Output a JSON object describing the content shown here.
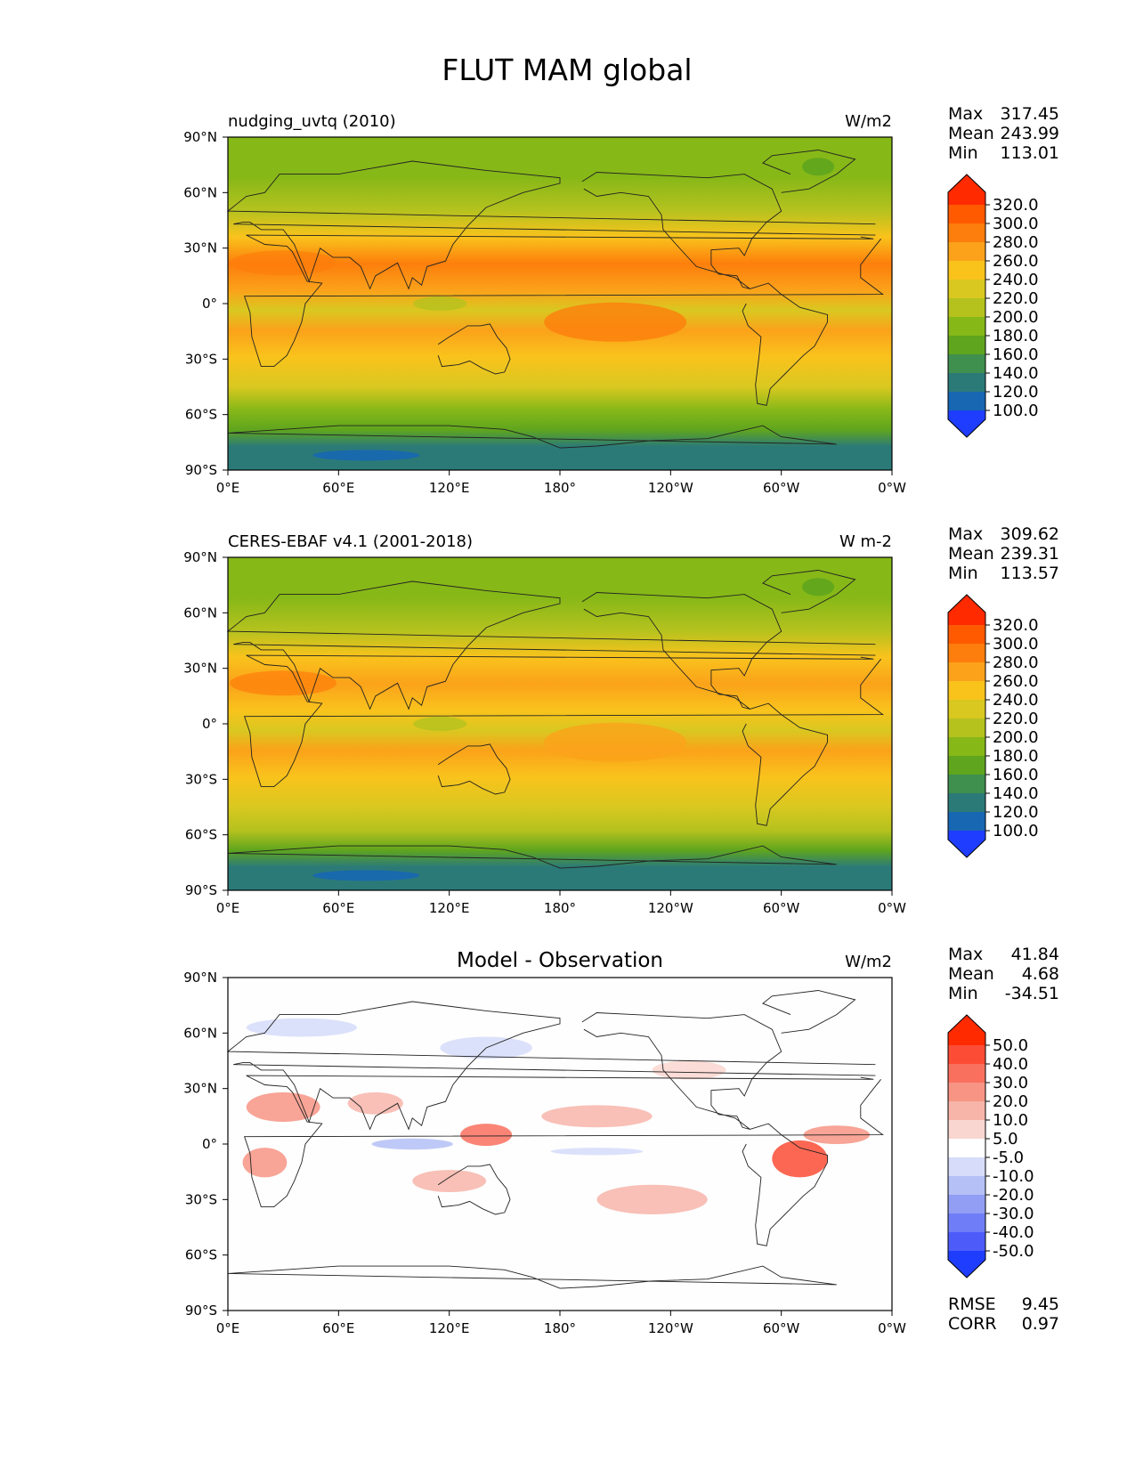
{
  "figure_title": "FLUT MAM global",
  "chart_data": [
    {
      "type": "heatmap",
      "title": "nudging_uvtq (2010)",
      "units": "W/m2",
      "xlabel": "",
      "ylabel": "",
      "xlim": [
        0,
        360
      ],
      "ylim": [
        -90,
        90
      ],
      "x_ticks": [
        "0°E",
        "60°E",
        "120°E",
        "180°",
        "120°W",
        "60°W",
        "0°W"
      ],
      "y_ticks": [
        "90°N",
        "60°N",
        "30°N",
        "0°",
        "30°S",
        "60°S",
        "90°S"
      ],
      "stats": {
        "max_label": "Max",
        "max": "317.45",
        "mean_label": "Mean",
        "mean": "243.99",
        "min_label": "Min",
        "min": "113.01"
      },
      "colorbar": {
        "levels": [
          "320.0",
          "300.0",
          "280.0",
          "260.0",
          "240.0",
          "220.0",
          "200.0",
          "180.0",
          "160.0",
          "140.0",
          "120.0",
          "100.0"
        ],
        "colors": [
          "#ff2a00",
          "#ff5a00",
          "#fd7e0c",
          "#fba21a",
          "#f9c31c",
          "#d9c820",
          "#b5c21e",
          "#86b818",
          "#5fa51e",
          "#3f8f4e",
          "#2b7a78",
          "#1767b3",
          "#1f3dff"
        ]
      }
    },
    {
      "type": "heatmap",
      "title": "CERES-EBAF v4.1 (2001-2018)",
      "units": "W m-2",
      "xlabel": "",
      "ylabel": "",
      "xlim": [
        0,
        360
      ],
      "ylim": [
        -90,
        90
      ],
      "x_ticks": [
        "0°E",
        "60°E",
        "120°E",
        "180°",
        "120°W",
        "60°W",
        "0°W"
      ],
      "y_ticks": [
        "90°N",
        "60°N",
        "30°N",
        "0°",
        "30°S",
        "60°S",
        "90°S"
      ],
      "stats": {
        "max_label": "Max",
        "max": "309.62",
        "mean_label": "Mean",
        "mean": "239.31",
        "min_label": "Min",
        "min": "113.57"
      },
      "colorbar": {
        "levels": [
          "320.0",
          "300.0",
          "280.0",
          "260.0",
          "240.0",
          "220.0",
          "200.0",
          "180.0",
          "160.0",
          "140.0",
          "120.0",
          "100.0"
        ],
        "colors": [
          "#ff2a00",
          "#ff5a00",
          "#fd7e0c",
          "#fba21a",
          "#f9c31c",
          "#d9c820",
          "#b5c21e",
          "#86b818",
          "#5fa51e",
          "#3f8f4e",
          "#2b7a78",
          "#1767b3",
          "#1f3dff"
        ]
      }
    },
    {
      "type": "heatmap",
      "title": "Model - Observation",
      "units": "W/m2",
      "xlabel": "",
      "ylabel": "",
      "xlim": [
        0,
        360
      ],
      "ylim": [
        -90,
        90
      ],
      "x_ticks": [
        "0°E",
        "60°E",
        "120°E",
        "180°",
        "120°W",
        "60°W",
        "0°W"
      ],
      "y_ticks": [
        "90°N",
        "60°N",
        "30°N",
        "0°",
        "30°S",
        "60°S",
        "90°S"
      ],
      "stats": {
        "max_label": "Max",
        "max": "41.84",
        "mean_label": "Mean",
        "mean": "4.68",
        "min_label": "Min",
        "min": "-34.51"
      },
      "extra_stats": {
        "rmse_label": "RMSE",
        "rmse": "9.45",
        "corr_label": "CORR",
        "corr": "0.97"
      },
      "colorbar": {
        "levels": [
          "50.0",
          "40.0",
          "30.0",
          "20.0",
          "10.0",
          "5.0",
          "-5.0",
          "-10.0",
          "-20.0",
          "-30.0",
          "-40.0",
          "-50.0"
        ],
        "colors": [
          "#ff2a00",
          "#fc4c35",
          "#f9705e",
          "#f79484",
          "#f7b5aa",
          "#fad6d0",
          "#ffffff",
          "#d6dcfa",
          "#b4c0f6",
          "#919ef3",
          "#6f7ef6",
          "#4d5cf9",
          "#1f3dff"
        ]
      }
    }
  ]
}
